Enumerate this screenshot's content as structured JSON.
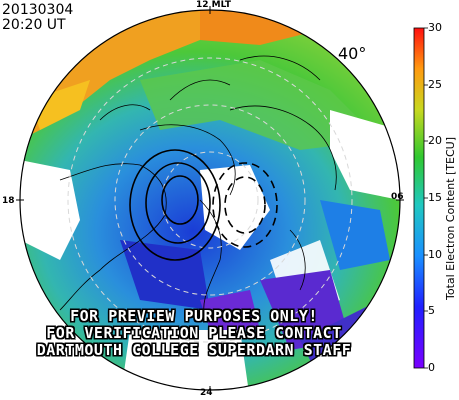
{
  "header": {
    "date": "20130304",
    "time": "20:20  UT"
  },
  "mlt_labels": {
    "top": "12 MLT",
    "left": "18",
    "right": "06",
    "bottom": "24"
  },
  "latitude_label": "40°",
  "watermark": [
    "FOR PREVIEW PURPOSES ONLY!",
    "FOR VERIFICATION PLEASE CONTACT",
    "DARTMOUTH COLLEGE SUPERDARN STAFF"
  ],
  "colorbar": {
    "title": "Total Electron Content [TECU]",
    "ticks": [
      "30",
      "25",
      "20",
      "15",
      "10",
      "5",
      "0"
    ],
    "range": [
      0,
      30
    ]
  },
  "colors": {
    "ocean_high": "#f08a1a",
    "mid": "#3fbf3f",
    "low": "#1e7fe6",
    "very_low": "#6b2ad6"
  }
}
